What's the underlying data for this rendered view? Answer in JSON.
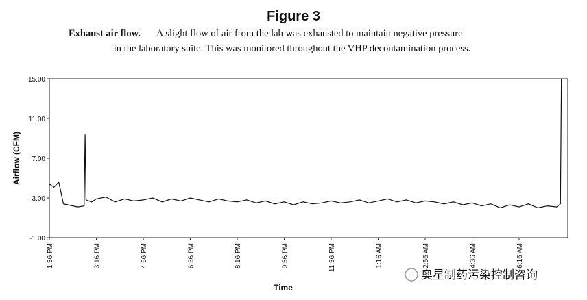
{
  "chart_data": {
    "type": "line",
    "title": "Figure 3",
    "caption_lead": "Exhaust air flow.",
    "caption_line1": "A slight flow of air from the lab was exhausted to maintain negative pressure",
    "caption_line2": "in the laboratory suite. This was monitored throughout the VHP decontamination process.",
    "x_label": "Time",
    "y_label": "Airflow (CFM)",
    "watermark": "奥星制药污染控制咨询",
    "ylim": [
      -1,
      15
    ],
    "yticks": [
      {
        "value": -1,
        "label": "-1.00"
      },
      {
        "value": 3,
        "label": "3.00"
      },
      {
        "value": 7,
        "label": "7.00"
      },
      {
        "value": 11,
        "label": "11.00"
      },
      {
        "value": 15,
        "label": "15.00"
      }
    ],
    "xticks": [
      "1:36 PM",
      "3:16 PM",
      "4:56 PM",
      "6:36 PM",
      "8:16 PM",
      "9:56 PM",
      "11:36 PM",
      "1:16 AM",
      "2:56 AM",
      "4:36 AM",
      "6:16 AM"
    ],
    "series": [
      {
        "color": "#111111",
        "x": [
          "1:36 PM",
          "1:46 PM",
          "1:56 PM",
          "2:06 PM",
          "2:16 PM",
          "2:36 PM",
          "2:50 PM",
          "2:52 PM",
          "2:54 PM",
          "3:06 PM",
          "3:16 PM",
          "3:36 PM",
          "3:56 PM",
          "4:16 PM",
          "4:36 PM",
          "4:56 PM",
          "5:16 PM",
          "5:36 PM",
          "5:56 PM",
          "6:16 PM",
          "6:36 PM",
          "6:56 PM",
          "7:16 PM",
          "7:36 PM",
          "7:56 PM",
          "8:16 PM",
          "8:36 PM",
          "8:56 PM",
          "9:16 PM",
          "9:36 PM",
          "9:56 PM",
          "10:16 PM",
          "10:36 PM",
          "10:56 PM",
          "11:16 PM",
          "11:36 PM",
          "11:56 PM",
          "12:16 AM",
          "12:36 AM",
          "12:56 AM",
          "1:16 AM",
          "1:36 AM",
          "1:56 AM",
          "2:16 AM",
          "2:36 AM",
          "2:56 AM",
          "3:16 AM",
          "3:36 AM",
          "3:56 AM",
          "4:16 AM",
          "4:36 AM",
          "4:56 AM",
          "5:16 AM",
          "5:36 AM",
          "5:56 AM",
          "6:16 AM",
          "6:36 AM",
          "6:56 AM",
          "7:16 AM",
          "7:36 AM",
          "7:44 AM",
          "7:46 AM"
        ],
        "values": [
          4.4,
          4.1,
          4.6,
          2.4,
          2.3,
          2.1,
          2.2,
          9.4,
          2.8,
          2.6,
          2.9,
          3.1,
          2.6,
          2.9,
          2.7,
          2.8,
          3.0,
          2.6,
          2.9,
          2.7,
          3.0,
          2.8,
          2.6,
          2.9,
          2.7,
          2.6,
          2.8,
          2.5,
          2.7,
          2.4,
          2.6,
          2.3,
          2.6,
          2.4,
          2.5,
          2.7,
          2.5,
          2.6,
          2.8,
          2.5,
          2.7,
          2.9,
          2.6,
          2.8,
          2.5,
          2.7,
          2.6,
          2.4,
          2.6,
          2.3,
          2.5,
          2.2,
          2.4,
          2.0,
          2.3,
          2.1,
          2.4,
          2.0,
          2.2,
          2.1,
          2.4,
          15.0
        ]
      }
    ]
  }
}
